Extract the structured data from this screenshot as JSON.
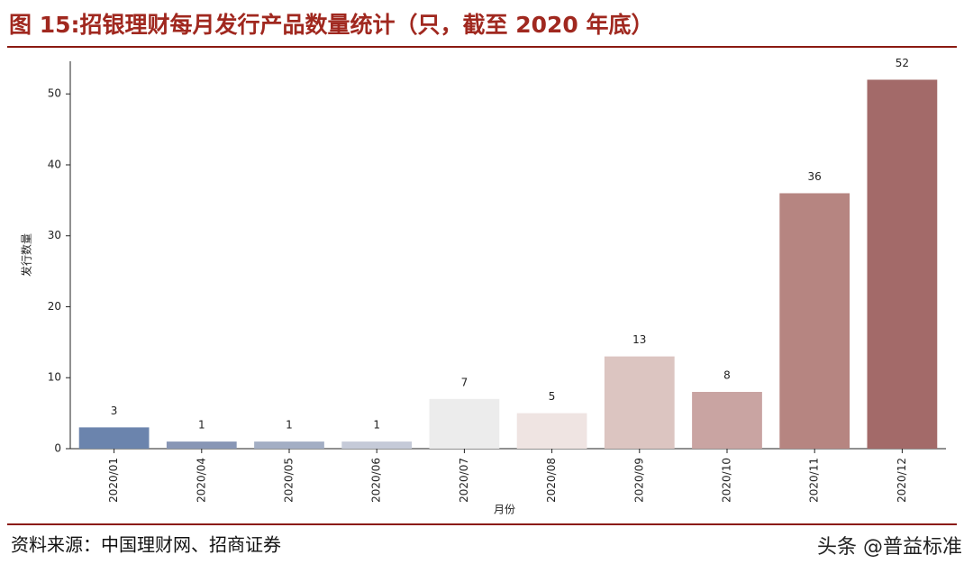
{
  "chart_data": {
    "type": "bar",
    "title": "图 15:招银理财每月发行产品数量统计（只，截至 2020 年底）",
    "categories": [
      "2020/01",
      "2020/04",
      "2020/05",
      "2020/06",
      "2020/07",
      "2020/08",
      "2020/09",
      "2020/10",
      "2020/11",
      "2020/12"
    ],
    "values": [
      3,
      1,
      1,
      1,
      7,
      5,
      13,
      8,
      36,
      52
    ],
    "colors": [
      "#6b84ad",
      "#8896b5",
      "#a3aec4",
      "#c5cad8",
      "#ececec",
      "#efe4e2",
      "#dcc5c1",
      "#c9a4a2",
      "#b68581",
      "#a36a69"
    ],
    "ylabel": "发行数量",
    "xlabel": "月份",
    "ylim": [
      0,
      54.6
    ],
    "yticks": [
      0,
      10,
      20,
      30,
      40,
      50
    ],
    "grid": false
  },
  "source": "资料来源：中国理财网、招商证券",
  "watermark": "头条 @普益标准"
}
